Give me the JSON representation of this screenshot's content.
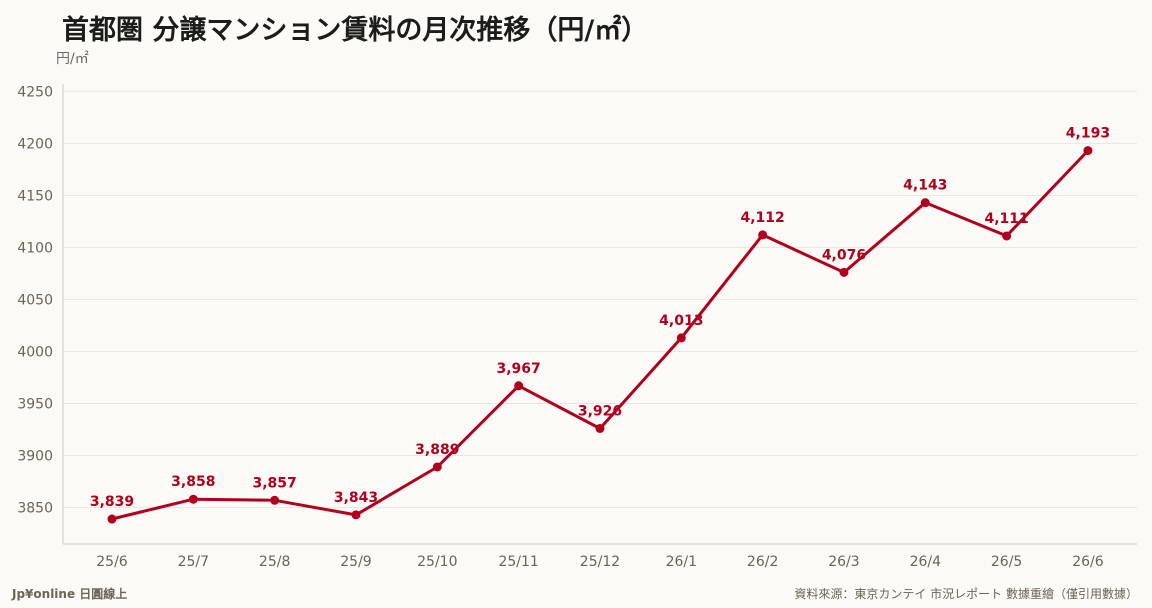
{
  "title": "首都圏 分譲マンション賃料の月次推移（円/㎡）",
  "unit_label": "円/㎡",
  "footer": {
    "left": "Jp¥online 日圓線上",
    "right": "資料來源：東京カンテイ 市況レポート 數據重繪（僅引用數據）"
  },
  "colors": {
    "line": "#b0001e",
    "background": "#fbfaf6"
  },
  "chart_data": {
    "type": "line",
    "title": "首都圏 分譲マンション賃料の月次推移（円/㎡）",
    "ylabel": "円/㎡",
    "xlabel": "",
    "categories": [
      "25/6",
      "25/7",
      "25/8",
      "25/9",
      "25/10",
      "25/11",
      "25/12",
      "26/1",
      "26/2",
      "26/3",
      "26/4",
      "26/5",
      "26/6"
    ],
    "series": [
      {
        "values": [
          3839,
          3858,
          3857,
          3843,
          3889,
          3967,
          3926,
          4013,
          4112,
          4076,
          4143,
          4111,
          4193
        ],
        "value_labels": [
          "3,839",
          "3,858",
          "3,857",
          "3,843",
          "3,889",
          "3,967",
          "3,926",
          "4,013",
          "4,112",
          "4,076",
          "4,143",
          "4,111",
          "4,193"
        ]
      }
    ],
    "ylim": [
      3815,
      4257
    ],
    "yticks": [
      "3850",
      "3900",
      "3950",
      "4000",
      "4050",
      "4100",
      "4150",
      "4200",
      "4250"
    ],
    "grid": true,
    "legend": "none"
  }
}
